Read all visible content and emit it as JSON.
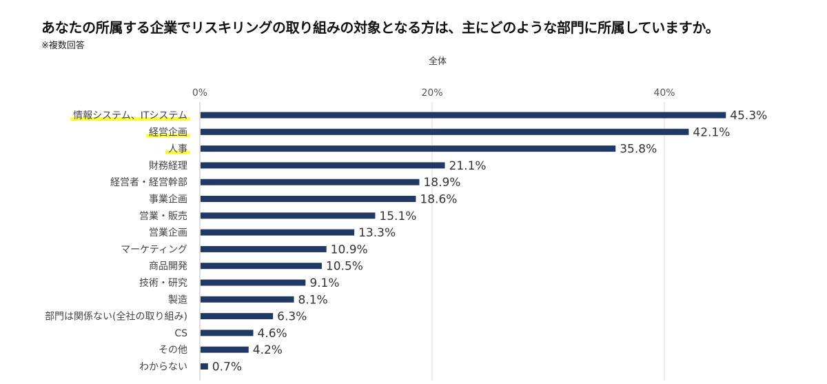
{
  "title": "あなたの所属する企業でリスキリングの取り組みの対象となる方は、主にどのような部門に所属していますか。",
  "note": "※複数回答",
  "subtitle": "全体",
  "colors": {
    "bar": "#1f3864",
    "highlight": "#ffff33",
    "grid": "#d9d9d9",
    "axis": "#bfbfbf"
  },
  "chart_data": {
    "type": "bar",
    "orientation": "horizontal",
    "title": "あなたの所属する企業でリスキリングの取り組みの対象となる方は、主にどのような部門に所属していますか。",
    "subtitle": "全体",
    "xlim": [
      0,
      50
    ],
    "x_ticks": [
      {
        "value": 0,
        "label": "0%"
      },
      {
        "value": 20,
        "label": "20%"
      },
      {
        "value": 40,
        "label": "40%"
      }
    ],
    "grid": true,
    "categories": [
      "情報システム、ITシステム",
      "経営企画",
      "人事",
      "財務経理",
      "経営者・経営幹部",
      "事業企画",
      "営業・販売",
      "営業企画",
      "マーケティング",
      "商品開発",
      "技術・研究",
      "製造",
      "部門は関係ない(全社の取り組み)",
      "CS",
      "その他",
      "わからない"
    ],
    "values": [
      45.3,
      42.1,
      35.8,
      21.1,
      18.9,
      18.6,
      15.1,
      13.3,
      10.9,
      10.5,
      9.1,
      8.1,
      6.3,
      4.6,
      4.2,
      0.7
    ],
    "value_labels": [
      "45.3%",
      "42.1%",
      "35.8%",
      "21.1%",
      "18.9%",
      "18.6%",
      "15.1%",
      "13.3%",
      "10.9%",
      "10.5%",
      "9.1%",
      "8.1%",
      "6.3%",
      "4.6%",
      "4.2%",
      "0.7%"
    ],
    "highlighted_categories": [
      "情報システム、ITシステム",
      "経営企画",
      "人事"
    ]
  }
}
